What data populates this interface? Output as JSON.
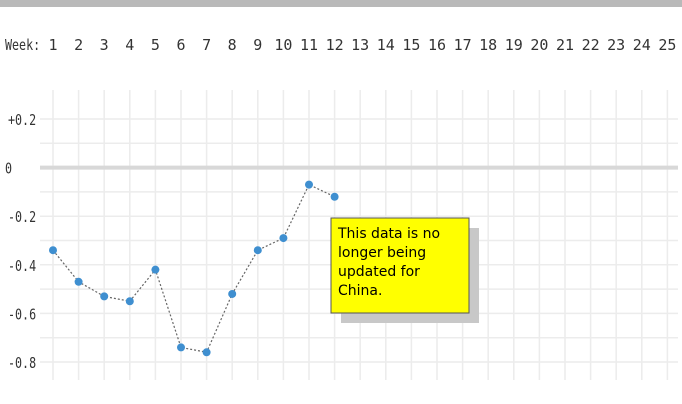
{
  "chart_data": {
    "type": "line",
    "xlabel": "Week:",
    "x": [
      1,
      2,
      3,
      4,
      5,
      6,
      7,
      8,
      9,
      10,
      11,
      12
    ],
    "x_ticks": [
      1,
      2,
      3,
      4,
      5,
      6,
      7,
      8,
      9,
      10,
      11,
      12,
      13,
      14,
      15,
      16,
      17,
      18,
      19,
      20,
      21,
      22,
      23,
      24,
      25
    ],
    "y_ticks": [
      "+0.2",
      "0",
      "-0.2",
      "-0.4",
      "-0.6",
      "-0.8"
    ],
    "series": [
      {
        "values": [
          -0.34,
          -0.47,
          -0.53,
          -0.55,
          -0.42,
          -0.74,
          -0.76,
          -0.52,
          -0.34,
          -0.29,
          -0.07,
          -0.12
        ]
      }
    ],
    "ylim": [
      -0.8,
      0.2
    ],
    "grid": true,
    "annotation": {
      "text_lines": [
        "This data is no",
        "longer being",
        "updated for",
        "China."
      ],
      "background": "#ffff00",
      "placement": "center-right"
    },
    "series_color": "#3f8fd0"
  }
}
